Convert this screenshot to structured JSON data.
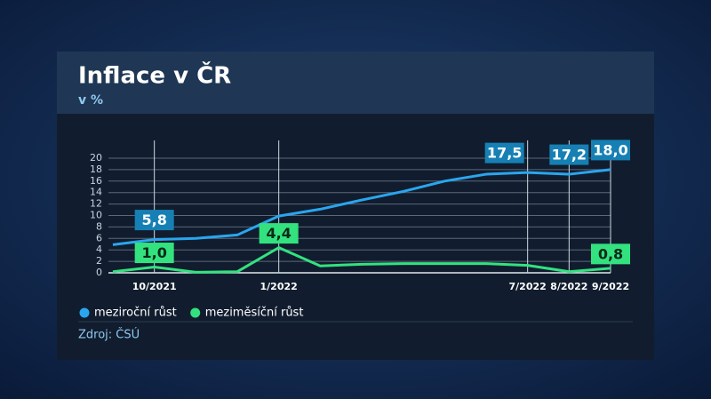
{
  "chart_data": {
    "type": "line",
    "title": "Inflace v ČR",
    "subtitle": "v %",
    "source": "Zdroj: ČSÚ",
    "categories": [
      null,
      "10/2021",
      null,
      null,
      "1/2022",
      null,
      null,
      null,
      null,
      null,
      "7/2022",
      "8/2022",
      "9/2022"
    ],
    "series": [
      {
        "name": "meziroční růst",
        "color": "#2aa6ee",
        "values": [
          4.9,
          5.8,
          6.0,
          6.6,
          9.9,
          11.1,
          12.7,
          14.2,
          16.0,
          17.2,
          17.5,
          17.2,
          18.0
        ],
        "value_labels": [
          null,
          "5,8",
          null,
          null,
          null,
          null,
          null,
          null,
          null,
          null,
          "17,5",
          "17,2",
          "18,0"
        ]
      },
      {
        "name": "meziměsíční růst",
        "color": "#33e27f",
        "values": [
          0.2,
          1.0,
          0.1,
          0.2,
          4.4,
          1.2,
          1.5,
          1.6,
          1.6,
          1.6,
          1.3,
          0.2,
          0.8
        ],
        "value_labels": [
          null,
          "1,0",
          null,
          null,
          "4,4",
          null,
          null,
          null,
          null,
          null,
          null,
          null,
          "0,8"
        ]
      }
    ],
    "ylim": [
      0,
      20
    ],
    "yticks": [
      0,
      2,
      4,
      6,
      8,
      10,
      12,
      14,
      16,
      18,
      20
    ],
    "grid": true
  }
}
